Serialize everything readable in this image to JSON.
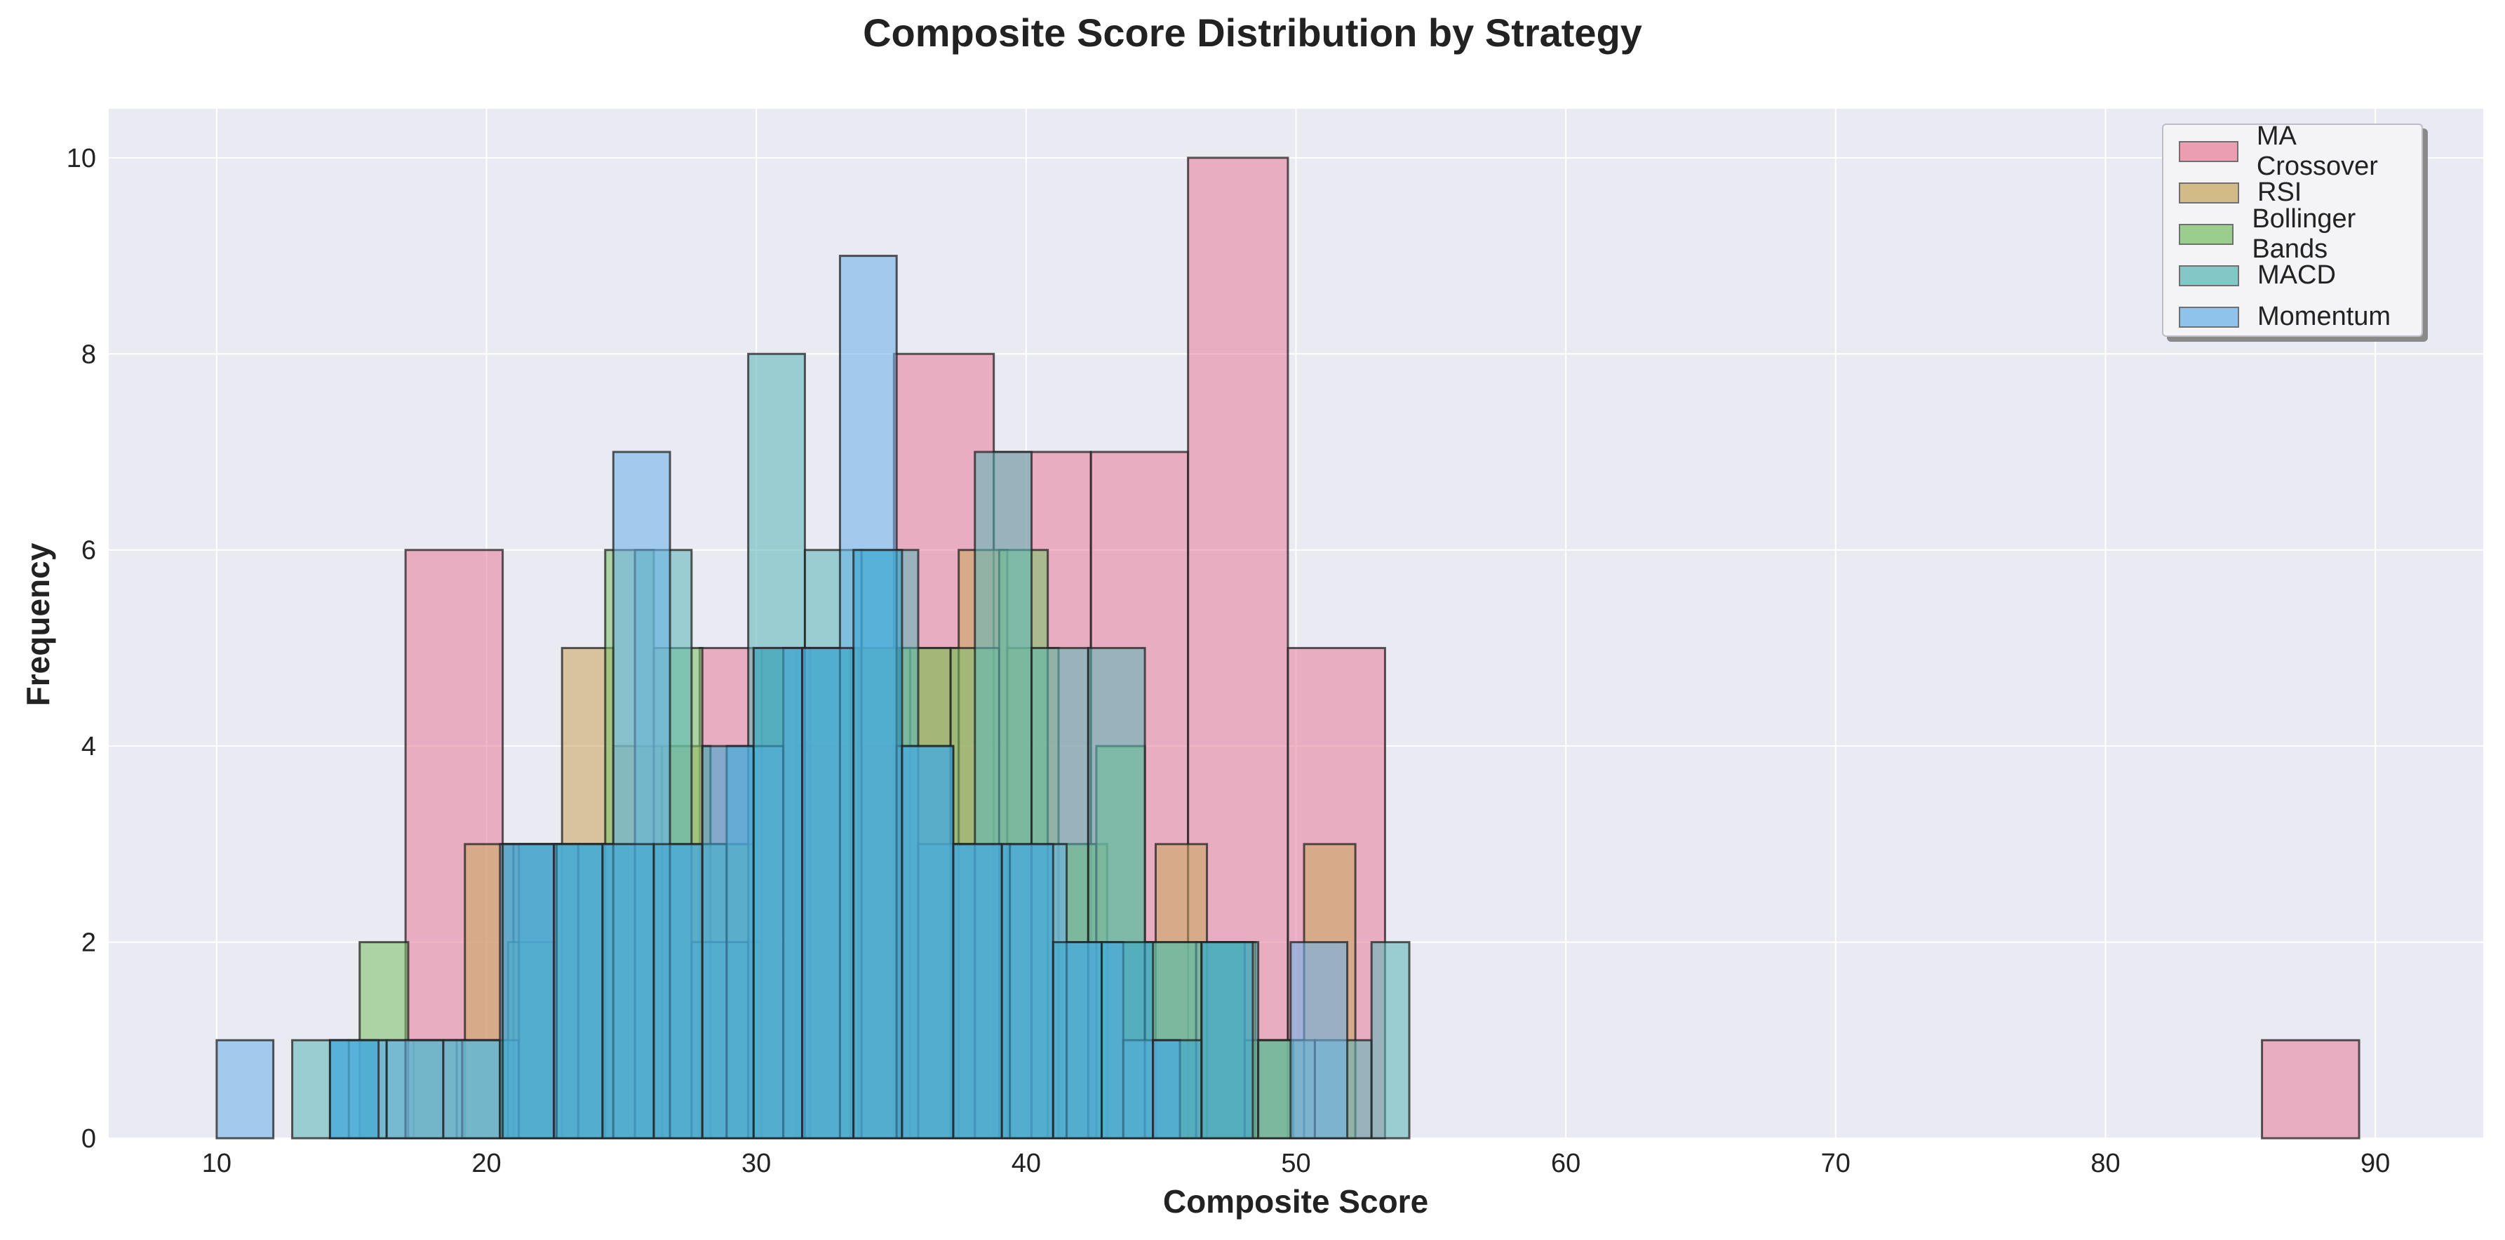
{
  "chart_data": {
    "type": "bar",
    "title": "Composite Score Distribution by Strategy",
    "xlabel": "Composite Score",
    "ylabel": "Frequency",
    "xlim": [
      6,
      94
    ],
    "ylim": [
      0,
      10.5
    ],
    "xticks": [
      10,
      20,
      30,
      40,
      50,
      60,
      70,
      80,
      90
    ],
    "yticks": [
      0,
      2,
      4,
      6,
      8,
      10
    ],
    "grid": true,
    "legend_position": "top-right",
    "series": [
      {
        "name": "MA Crossover",
        "color": "#e8829c",
        "bins": [
          {
            "x0": 17.0,
            "x1": 20.6,
            "count": 6
          },
          {
            "x0": 20.6,
            "x1": 24.3,
            "count": 3
          },
          {
            "x0": 24.3,
            "x1": 27.9,
            "count": 3
          },
          {
            "x0": 27.9,
            "x1": 31.5,
            "count": 5
          },
          {
            "x0": 31.5,
            "x1": 35.1,
            "count": 4
          },
          {
            "x0": 35.1,
            "x1": 38.8,
            "count": 8
          },
          {
            "x0": 38.8,
            "x1": 42.4,
            "count": 7
          },
          {
            "x0": 42.4,
            "x1": 46.0,
            "count": 7
          },
          {
            "x0": 46.0,
            "x1": 49.7,
            "count": 10
          },
          {
            "x0": 49.7,
            "x1": 53.3,
            "count": 5
          },
          {
            "x0": 85.8,
            "x1": 89.4,
            "count": 1
          }
        ]
      },
      {
        "name": "RSI",
        "color": "#c9a863",
        "bins": [
          {
            "x0": 17.3,
            "x1": 19.2,
            "count": 1
          },
          {
            "x0": 19.2,
            "x1": 21.0,
            "count": 3
          },
          {
            "x0": 21.0,
            "x1": 22.8,
            "count": 3
          },
          {
            "x0": 22.8,
            "x1": 24.7,
            "count": 5
          },
          {
            "x0": 24.7,
            "x1": 26.5,
            "count": 4
          },
          {
            "x0": 26.5,
            "x1": 28.3,
            "count": 4
          },
          {
            "x0": 28.3,
            "x1": 30.2,
            "count": 2
          },
          {
            "x0": 30.2,
            "x1": 32.0,
            "count": 5
          },
          {
            "x0": 32.0,
            "x1": 33.8,
            "count": 5
          },
          {
            "x0": 33.8,
            "x1": 35.7,
            "count": 5
          },
          {
            "x0": 35.7,
            "x1": 37.5,
            "count": 5
          },
          {
            "x0": 37.5,
            "x1": 39.3,
            "count": 6
          },
          {
            "x0": 39.3,
            "x1": 41.2,
            "count": 5
          },
          {
            "x0": 41.2,
            "x1": 43.0,
            "count": 3
          },
          {
            "x0": 43.0,
            "x1": 44.8,
            "count": 2
          },
          {
            "x0": 44.8,
            "x1": 46.7,
            "count": 3
          },
          {
            "x0": 46.7,
            "x1": 48.5,
            "count": 2
          },
          {
            "x0": 48.5,
            "x1": 50.3,
            "count": 1
          },
          {
            "x0": 50.3,
            "x1": 52.2,
            "count": 3
          }
        ]
      },
      {
        "name": "Bollinger Bands",
        "color": "#7dc26a",
        "bins": [
          {
            "x0": 15.3,
            "x1": 17.1,
            "count": 2
          },
          {
            "x0": 17.1,
            "x1": 18.9,
            "count": 1
          },
          {
            "x0": 18.9,
            "x1": 20.8,
            "count": 1
          },
          {
            "x0": 20.8,
            "x1": 22.6,
            "count": 2
          },
          {
            "x0": 22.6,
            "x1": 24.4,
            "count": 3
          },
          {
            "x0": 24.4,
            "x1": 26.2,
            "count": 6
          },
          {
            "x0": 26.2,
            "x1": 28.0,
            "count": 5
          },
          {
            "x0": 28.0,
            "x1": 29.9,
            "count": 3
          },
          {
            "x0": 29.9,
            "x1": 31.7,
            "count": 5
          },
          {
            "x0": 31.7,
            "x1": 33.5,
            "count": 5
          },
          {
            "x0": 33.5,
            "x1": 35.3,
            "count": 5
          },
          {
            "x0": 35.3,
            "x1": 37.2,
            "count": 5
          },
          {
            "x0": 37.2,
            "x1": 39.0,
            "count": 5
          },
          {
            "x0": 39.0,
            "x1": 40.8,
            "count": 6
          },
          {
            "x0": 40.8,
            "x1": 42.6,
            "count": 3
          },
          {
            "x0": 42.6,
            "x1": 44.4,
            "count": 4
          },
          {
            "x0": 44.4,
            "x1": 46.3,
            "count": 2
          },
          {
            "x0": 46.3,
            "x1": 48.1,
            "count": 2
          },
          {
            "x0": 48.1,
            "x1": 49.9,
            "count": 1
          }
        ]
      },
      {
        "name": "MACD",
        "color": "#5fb8b8",
        "bins": [
          {
            "x0": 12.8,
            "x1": 14.9,
            "count": 1
          },
          {
            "x0": 14.9,
            "x1": 17.0,
            "count": 1
          },
          {
            "x0": 17.0,
            "x1": 19.1,
            "count": 1
          },
          {
            "x0": 19.1,
            "x1": 21.2,
            "count": 1
          },
          {
            "x0": 21.2,
            "x1": 23.4,
            "count": 3
          },
          {
            "x0": 23.4,
            "x1": 25.5,
            "count": 3
          },
          {
            "x0": 25.5,
            "x1": 27.6,
            "count": 6
          },
          {
            "x0": 27.6,
            "x1": 29.7,
            "count": 2
          },
          {
            "x0": 29.7,
            "x1": 31.8,
            "count": 8
          },
          {
            "x0": 31.8,
            "x1": 33.9,
            "count": 6
          },
          {
            "x0": 33.9,
            "x1": 36.0,
            "count": 6
          },
          {
            "x0": 36.0,
            "x1": 38.1,
            "count": 3
          },
          {
            "x0": 38.1,
            "x1": 40.2,
            "count": 7
          },
          {
            "x0": 40.2,
            "x1": 42.3,
            "count": 5
          },
          {
            "x0": 42.3,
            "x1": 44.4,
            "count": 5
          },
          {
            "x0": 44.4,
            "x1": 46.5,
            "count": 2
          },
          {
            "x0": 46.5,
            "x1": 48.6,
            "count": 2
          },
          {
            "x0": 48.6,
            "x1": 50.7,
            "count": 1
          },
          {
            "x0": 50.7,
            "x1": 52.8,
            "count": 1
          },
          {
            "x0": 52.8,
            "x1": 54.2,
            "count": 2
          }
        ]
      },
      {
        "name": "Momentum",
        "color": "#6fb3e8",
        "bins": [
          {
            "x0": 10.0,
            "x1": 12.1,
            "count": 1
          },
          {
            "x0": 14.2,
            "x1": 16.3,
            "count": 1
          },
          {
            "x0": 16.3,
            "x1": 18.4,
            "count": 1
          },
          {
            "x0": 18.4,
            "x1": 20.5,
            "count": 1
          },
          {
            "x0": 20.5,
            "x1": 22.6,
            "count": 3
          },
          {
            "x0": 22.6,
            "x1": 24.7,
            "count": 3
          },
          {
            "x0": 24.7,
            "x1": 26.8,
            "count": 7
          },
          {
            "x0": 26.8,
            "x1": 28.9,
            "count": 3
          },
          {
            "x0": 28.9,
            "x1": 31.0,
            "count": 4
          },
          {
            "x0": 31.0,
            "x1": 33.1,
            "count": 5
          },
          {
            "x0": 33.1,
            "x1": 35.2,
            "count": 9
          },
          {
            "x0": 35.2,
            "x1": 37.3,
            "count": 4
          },
          {
            "x0": 37.3,
            "x1": 39.4,
            "count": 3
          },
          {
            "x0": 39.4,
            "x1": 41.5,
            "count": 3
          },
          {
            "x0": 41.5,
            "x1": 43.6,
            "count": 2
          },
          {
            "x0": 43.6,
            "x1": 45.7,
            "count": 1
          },
          {
            "x0": 49.8,
            "x1": 51.9,
            "count": 2
          }
        ]
      },
      {
        "name": "",
        "color": "#3ba7d2",
        "bins": [
          {
            "x0": 14.2,
            "x1": 16.0,
            "count": 1
          },
          {
            "x0": 20.6,
            "x1": 22.5,
            "count": 3
          },
          {
            "x0": 22.5,
            "x1": 24.3,
            "count": 3
          },
          {
            "x0": 24.3,
            "x1": 26.2,
            "count": 3
          },
          {
            "x0": 26.2,
            "x1": 28.0,
            "count": 3
          },
          {
            "x0": 28.0,
            "x1": 29.9,
            "count": 4
          },
          {
            "x0": 29.9,
            "x1": 31.7,
            "count": 5
          },
          {
            "x0": 31.7,
            "x1": 33.6,
            "count": 5
          },
          {
            "x0": 33.6,
            "x1": 35.4,
            "count": 6
          },
          {
            "x0": 35.4,
            "x1": 37.3,
            "count": 4
          },
          {
            "x0": 37.3,
            "x1": 39.1,
            "count": 3
          },
          {
            "x0": 39.1,
            "x1": 41.0,
            "count": 3
          },
          {
            "x0": 41.0,
            "x1": 42.8,
            "count": 2
          },
          {
            "x0": 42.8,
            "x1": 44.7,
            "count": 2
          },
          {
            "x0": 44.7,
            "x1": 46.5,
            "count": 1
          },
          {
            "x0": 46.5,
            "x1": 48.4,
            "count": 2
          }
        ]
      }
    ]
  }
}
